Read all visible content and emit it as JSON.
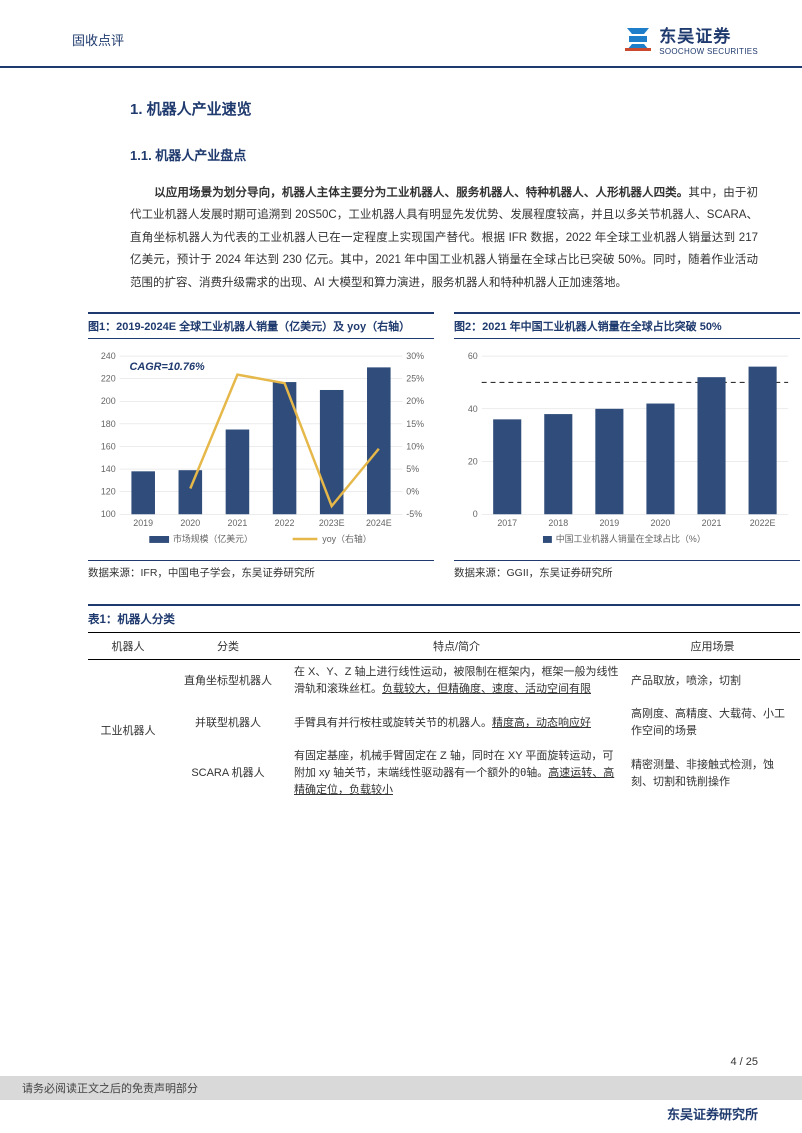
{
  "header": {
    "left_text": "固收点评",
    "company_cn": "东吴证券",
    "company_en": "SOOCHOW SECURITIES"
  },
  "section": {
    "h1": "1.  机器人产业速览",
    "h2": "1.1.  机器人产业盘点",
    "p1_bold": "以应用场景为划分导向，机器人主体主要分为工业机器人、服务机器人、特种机器人、人形机器人四类。",
    "p1_rest": "其中，由于初代工业机器人发展时期可追溯到 20S50C，工业机器人具有明显先发优势、发展程度较高，并且以多关节机器人、SCARA、直角坐标机器人为代表的工业机器人已在一定程度上实现国产替代。根据 IFR 数据，2022 年全球工业机器人销量达到 217 亿美元，预计于 2024 年达到 230 亿元。其中，2021 年中国工业机器人销量在全球占比已突破 50%。同时，随着作业活动范围的扩容、消费升级需求的出现、AI 大模型和算力演进，服务机器人和特种机器人正加速落地。"
  },
  "chart1": {
    "title": "图1：2019-2024E 全球工业机器人销量（亿美元）及 yoy（右轴）",
    "type": "bar+line",
    "categories": [
      "2019",
      "2020",
      "2021",
      "2022",
      "2023E",
      "2024E"
    ],
    "bar_values": [
      138,
      139,
      175,
      217,
      210,
      230
    ],
    "line_values": [
      null,
      0.7,
      25.9,
      24.0,
      -3.2,
      9.5
    ],
    "cagr_label": "CAGR=10.76%",
    "y1_min": 100,
    "y1_max": 240,
    "y1_step": 20,
    "y2_min": -5,
    "y2_max": 30,
    "y2_step": 5,
    "bar_color": "#2f4c7a",
    "line_color": "#e6b84a",
    "grid_color": "#d9d9d9",
    "legend_bar": "市场规模（亿美元）",
    "legend_line": "yoy（右轴）",
    "source": "数据来源：IFR，中国电子学会，东吴证券研究所"
  },
  "chart2": {
    "title": "图2：2021 年中国工业机器人销量在全球占比突破 50%",
    "type": "bar",
    "categories": [
      "2017",
      "2018",
      "2019",
      "2020",
      "2021",
      "2022E"
    ],
    "values": [
      36,
      38,
      40,
      42,
      52,
      56
    ],
    "threshold": 50,
    "y_min": 0,
    "y_max": 60,
    "y_step": 20,
    "bar_color": "#2f4c7a",
    "dash_color": "#333",
    "grid_color": "#d9d9d9",
    "legend": "中国工业机器人销量在全球占比（%）",
    "source": "数据来源：GGII，东吴证券研究所"
  },
  "table": {
    "title": "表1：机器人分类",
    "columns": [
      "机器人",
      "分类",
      "特点/简介",
      "应用场景"
    ],
    "rows": [
      {
        "cat": "工业机器人",
        "sub": "直角坐标型机器人",
        "desc_plain": "在 X、Y、Z 轴上进行线性运动，被限制在框架内，框架一般为线性滑轨和滚珠丝杠。",
        "desc_u": "负载较大，但精确度、速度、活动空间有限",
        "app": "产品取放，喷涂，切割"
      },
      {
        "cat": "",
        "sub": "并联型机器人",
        "desc_plain": "手臂具有并行桉柱或旋转关节的机器人。",
        "desc_u": "精度高，动态响应好",
        "app": "高刚度、高精度、大载荷、小工作空间的场景"
      },
      {
        "cat": "",
        "sub": "SCARA 机器人",
        "desc_plain": "有固定基座，机械手臂固定在 Z 轴，同时在 XY 平面旋转运动，可附加 xy 轴关节，末端线性驱动器有一个额外的θ轴。",
        "desc_u": "高速运转、高精确定位，负载较小",
        "app": "精密测量、非接触式检测，蚀刻、切割和铣削操作"
      }
    ]
  },
  "footer": {
    "disclaimer": "请务必阅读正文之后的免责声明部分",
    "page": "4 / 25",
    "org": "东吴证券研究所"
  }
}
